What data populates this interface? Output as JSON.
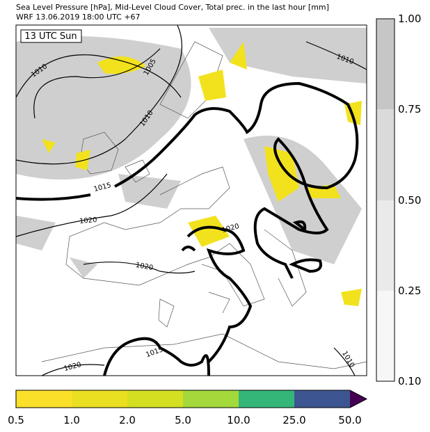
{
  "header": {
    "line1": "Sea Level Pressure [hPa], Mid-Level Cloud Cover, Total prec. in the last hour [mm]",
    "line2": "WRF 13.06.2019 18:00 UTC +67"
  },
  "map": {
    "time_label": "13 UTC Sun",
    "contour_labels": [
      "1010",
      "1005",
      "1010",
      "1015",
      "1020",
      "1020",
      "1020",
      "1015",
      "1020",
      "1010",
      "1010"
    ]
  },
  "precip_colorbar": {
    "ticks": [
      "0.5",
      "1.0",
      "2.0",
      "5.0",
      "10.0",
      "25.0",
      "50.0"
    ]
  },
  "cloud_colorbar": {
    "ticks": [
      "0.10",
      "0.25",
      "0.50",
      "0.75",
      "1.00"
    ]
  }
}
